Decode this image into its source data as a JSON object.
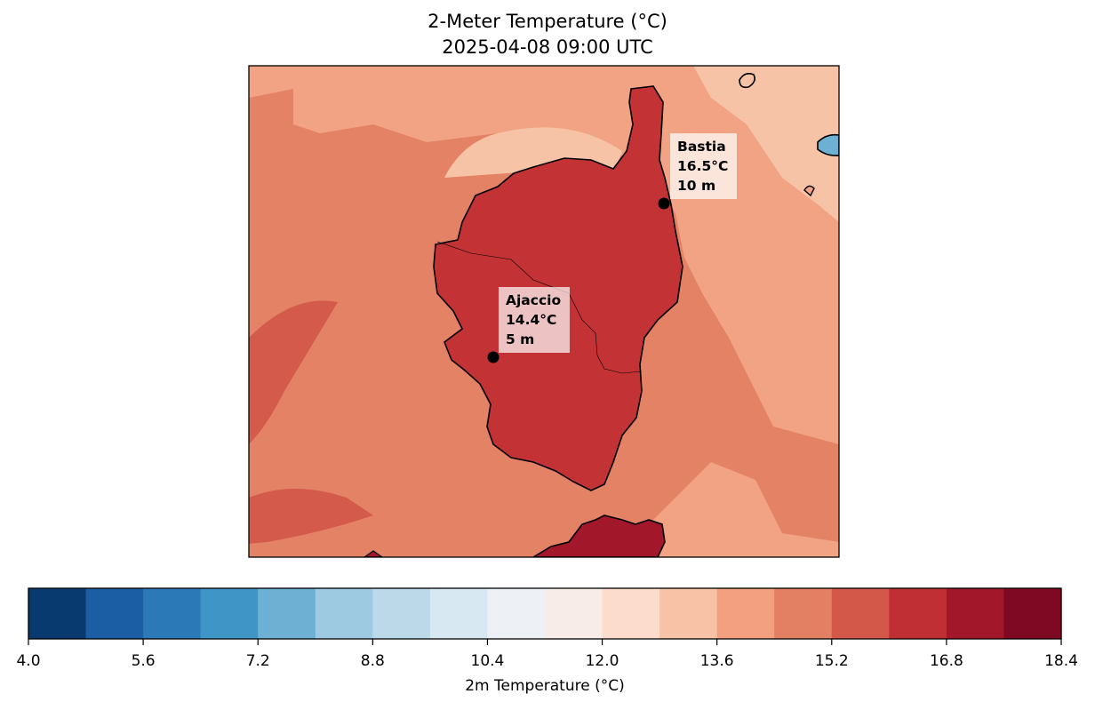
{
  "title": {
    "line1": "2-Meter Temperature (°C)",
    "line2": "2025-04-08 09:00 UTC"
  },
  "colorbar": {
    "label": "2m Temperature (°C)",
    "min": 4.0,
    "max": 18.4,
    "step": 0.8,
    "ticks": [
      "4.0",
      "5.6",
      "7.2",
      "8.8",
      "10.4",
      "12.0",
      "13.6",
      "15.2",
      "16.8",
      "18.4"
    ],
    "colormap": "RdBu_r",
    "colors": [
      "#083a70",
      "#1c5ea4",
      "#2b79b7",
      "#3f95c6",
      "#6eb0d4",
      "#9ecae1",
      "#bcd9ea",
      "#d8e8f2",
      "#edf1f6",
      "#f7ece7",
      "#fcdccd",
      "#f7c2a6",
      "#f2a07f",
      "#e37f63",
      "#d4584a",
      "#bf2f34",
      "#a3172a",
      "#7f0823"
    ]
  },
  "stations": [
    {
      "name": "Bastia",
      "temp": "16.5°C",
      "elev": "10 m"
    },
    {
      "name": "Ajaccio",
      "temp": "14.4°C",
      "elev": "5 m"
    }
  ]
}
